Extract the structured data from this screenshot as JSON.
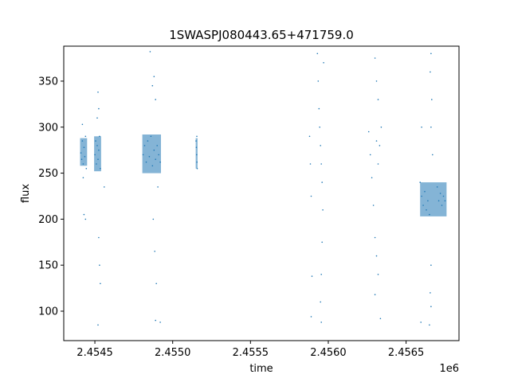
{
  "chart_data": {
    "type": "scatter",
    "title": "1SWASPJ080443.65+471759.0",
    "xlabel": "time",
    "ylabel": "flux",
    "x_offset_label": "1e6",
    "xlim": [
      2454300,
      2456840
    ],
    "ylim": [
      68,
      388
    ],
    "x_ticks": [
      2454500,
      2455000,
      2455500,
      2456000,
      2456500
    ],
    "x_tick_labels": [
      "2.4545",
      "2.4550",
      "2.4555",
      "2.4560",
      "2.4565"
    ],
    "y_ticks": [
      100,
      150,
      200,
      250,
      300,
      350
    ],
    "y_tick_labels": [
      "100",
      "150",
      "200",
      "250",
      "300",
      "350"
    ],
    "marker_color": "#1f77b4",
    "grid": false,
    "series": [
      {
        "values": [
          {
            "x": 2454410,
            "y": 272
          },
          {
            "x": 2454415,
            "y": 265
          },
          {
            "x": 2454420,
            "y": 285
          },
          {
            "x": 2454425,
            "y": 260
          },
          {
            "x": 2454430,
            "y": 278
          },
          {
            "x": 2454435,
            "y": 268
          },
          {
            "x": 2454440,
            "y": 290
          },
          {
            "x": 2454445,
            "y": 255
          },
          {
            "x": 2454420,
            "y": 303
          },
          {
            "x": 2454425,
            "y": 245
          },
          {
            "x": 2454430,
            "y": 205
          },
          {
            "x": 2454440,
            "y": 200
          },
          {
            "x": 2454500,
            "y": 270
          },
          {
            "x": 2454505,
            "y": 285
          },
          {
            "x": 2454510,
            "y": 260
          },
          {
            "x": 2454515,
            "y": 280
          },
          {
            "x": 2454520,
            "y": 265
          },
          {
            "x": 2454525,
            "y": 275
          },
          {
            "x": 2454530,
            "y": 290
          },
          {
            "x": 2454535,
            "y": 255
          },
          {
            "x": 2454520,
            "y": 338
          },
          {
            "x": 2454525,
            "y": 320
          },
          {
            "x": 2454515,
            "y": 310
          },
          {
            "x": 2454530,
            "y": 150
          },
          {
            "x": 2454535,
            "y": 130
          },
          {
            "x": 2454520,
            "y": 85
          },
          {
            "x": 2454525,
            "y": 180
          },
          {
            "x": 2454560,
            "y": 235
          },
          {
            "x": 2454810,
            "y": 270
          },
          {
            "x": 2454820,
            "y": 280
          },
          {
            "x": 2454830,
            "y": 262
          },
          {
            "x": 2454840,
            "y": 285
          },
          {
            "x": 2454850,
            "y": 268
          },
          {
            "x": 2454860,
            "y": 290
          },
          {
            "x": 2454870,
            "y": 258
          },
          {
            "x": 2454880,
            "y": 275
          },
          {
            "x": 2454890,
            "y": 265
          },
          {
            "x": 2454900,
            "y": 280
          },
          {
            "x": 2454910,
            "y": 270
          },
          {
            "x": 2454920,
            "y": 262
          },
          {
            "x": 2454855,
            "y": 382
          },
          {
            "x": 2454870,
            "y": 345
          },
          {
            "x": 2454880,
            "y": 355
          },
          {
            "x": 2454890,
            "y": 330
          },
          {
            "x": 2454875,
            "y": 200
          },
          {
            "x": 2454885,
            "y": 165
          },
          {
            "x": 2454895,
            "y": 130
          },
          {
            "x": 2454890,
            "y": 90
          },
          {
            "x": 2454920,
            "y": 88
          },
          {
            "x": 2454905,
            "y": 235
          },
          {
            "x": 2455150,
            "y": 285
          },
          {
            "x": 2455152,
            "y": 278
          },
          {
            "x": 2455154,
            "y": 270
          },
          {
            "x": 2455156,
            "y": 262
          },
          {
            "x": 2455158,
            "y": 255
          },
          {
            "x": 2455155,
            "y": 290
          },
          {
            "x": 2455880,
            "y": 290
          },
          {
            "x": 2455885,
            "y": 260
          },
          {
            "x": 2455890,
            "y": 225
          },
          {
            "x": 2455895,
            "y": 138
          },
          {
            "x": 2455890,
            "y": 94
          },
          {
            "x": 2455930,
            "y": 380
          },
          {
            "x": 2455935,
            "y": 350
          },
          {
            "x": 2455940,
            "y": 320
          },
          {
            "x": 2455945,
            "y": 300
          },
          {
            "x": 2455950,
            "y": 280
          },
          {
            "x": 2455955,
            "y": 260
          },
          {
            "x": 2455960,
            "y": 240
          },
          {
            "x": 2455965,
            "y": 210
          },
          {
            "x": 2455960,
            "y": 175
          },
          {
            "x": 2455955,
            "y": 140
          },
          {
            "x": 2455950,
            "y": 110
          },
          {
            "x": 2455955,
            "y": 88
          },
          {
            "x": 2455970,
            "y": 370
          },
          {
            "x": 2456260,
            "y": 295
          },
          {
            "x": 2456270,
            "y": 270
          },
          {
            "x": 2456280,
            "y": 245
          },
          {
            "x": 2456290,
            "y": 215
          },
          {
            "x": 2456300,
            "y": 375
          },
          {
            "x": 2456310,
            "y": 350
          },
          {
            "x": 2456320,
            "y": 330
          },
          {
            "x": 2456310,
            "y": 285
          },
          {
            "x": 2456320,
            "y": 260
          },
          {
            "x": 2456330,
            "y": 280
          },
          {
            "x": 2456300,
            "y": 180
          },
          {
            "x": 2456310,
            "y": 160
          },
          {
            "x": 2456320,
            "y": 140
          },
          {
            "x": 2456300,
            "y": 118
          },
          {
            "x": 2456340,
            "y": 300
          },
          {
            "x": 2456335,
            "y": 92
          },
          {
            "x": 2456590,
            "y": 240
          },
          {
            "x": 2456600,
            "y": 225
          },
          {
            "x": 2456610,
            "y": 215
          },
          {
            "x": 2456620,
            "y": 230
          },
          {
            "x": 2456630,
            "y": 210
          },
          {
            "x": 2456640,
            "y": 220
          },
          {
            "x": 2456650,
            "y": 205
          },
          {
            "x": 2456660,
            "y": 380
          },
          {
            "x": 2456655,
            "y": 360
          },
          {
            "x": 2456665,
            "y": 330
          },
          {
            "x": 2456660,
            "y": 300
          },
          {
            "x": 2456670,
            "y": 270
          },
          {
            "x": 2456660,
            "y": 150
          },
          {
            "x": 2456655,
            "y": 120
          },
          {
            "x": 2456660,
            "y": 105
          },
          {
            "x": 2456650,
            "y": 85
          },
          {
            "x": 2456600,
            "y": 300
          },
          {
            "x": 2456595,
            "y": 88
          },
          {
            "x": 2456700,
            "y": 235
          },
          {
            "x": 2456710,
            "y": 220
          },
          {
            "x": 2456720,
            "y": 228
          },
          {
            "x": 2456730,
            "y": 215
          },
          {
            "x": 2456740,
            "y": 225
          },
          {
            "x": 2456750,
            "y": 220
          }
        ]
      }
    ]
  }
}
